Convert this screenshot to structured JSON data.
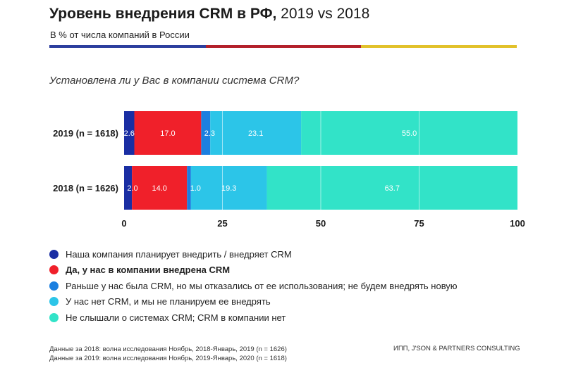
{
  "header": {
    "title_bold": "Уровень внедрения CRM в РФ,",
    "title_light": " 2019 vs 2018",
    "subtitle": "В % от числа компаний в России",
    "colorbar": [
      "#2c3e9e",
      "#b3202a",
      "#e2c12a"
    ]
  },
  "question": "Установлена ли у Вас в компании система CRM?",
  "chart_data": {
    "type": "bar",
    "orientation": "horizontal",
    "stacked": true,
    "categories": [
      "2019 (n = 1618)",
      "2018 (n = 1626)"
    ],
    "series": [
      {
        "name": "Наша компания планирует внедрить / внедряет CRM",
        "color": "#1a2ea3",
        "values": [
          2.6,
          2.0
        ]
      },
      {
        "name": "Да, у нас в компании внедрена CRM",
        "color": "#f0202a",
        "values": [
          17.0,
          14.0
        ]
      },
      {
        "name": "Раньше у нас была CRM, но мы отказались от ее использования; не будем внедрять новую",
        "color": "#1b7fe0",
        "values": [
          2.3,
          1.0
        ]
      },
      {
        "name": "У нас нет CRM, и мы не планируем ее внедрять",
        "color": "#2cc5e8",
        "values": [
          23.1,
          19.3
        ]
      },
      {
        "name": "Не слышали о системах CRM; CRM в компании нет",
        "color": "#32e3c8",
        "values": [
          55.0,
          63.7
        ]
      }
    ],
    "data_labels": [
      [
        "2.6",
        "17.0",
        "2.3",
        "23.1",
        "55.0"
      ],
      [
        "2.0",
        "14.0",
        "1.0",
        "19.3",
        "63.7"
      ]
    ],
    "xlim": [
      0,
      100
    ],
    "xticks": [
      0,
      25,
      50,
      75,
      100
    ],
    "grid": true,
    "legend_position": "bottom-left"
  },
  "footer": {
    "note_2018": "Данные за 2018: волна исследования Ноябрь, 2018-Январь, 2019 (n = 1626)",
    "note_2019": "Данные за 2019: волна исследования Ноябрь, 2019-Январь, 2020 (n = 1618)",
    "source": "ИПП, J'SON & PARTNERS CONSULTING"
  }
}
